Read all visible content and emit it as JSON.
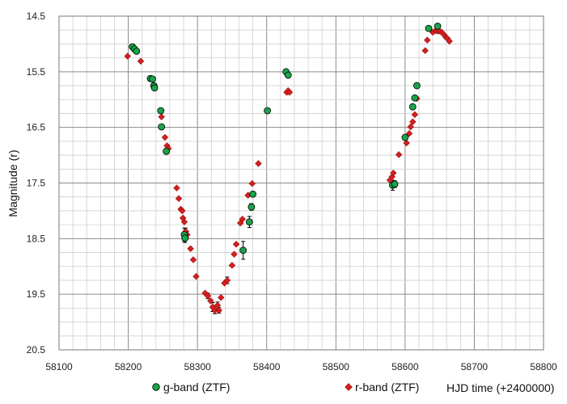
{
  "chart_data": {
    "type": "scatter",
    "title": "",
    "xlabel": "HJD time (+2400000)",
    "ylabel": "Magnitude (r)",
    "xlim": [
      58100,
      58800
    ],
    "ylim": [
      14.5,
      20.5
    ],
    "y_inverted": true,
    "x_ticks": [
      "58100",
      "58200",
      "58300",
      "58400",
      "58500",
      "58600",
      "58700",
      "58800"
    ],
    "y_ticks": [
      "14.5",
      "15.5",
      "16.5",
      "17.5",
      "18.5",
      "19.5",
      "20.5"
    ],
    "grid": true,
    "legend_position": "bottom",
    "series": [
      {
        "name": "g-band (ZTF)",
        "marker": "circle",
        "color": "#1aa34a",
        "points": [
          [
            58206,
            15.05
          ],
          [
            58209,
            15.09
          ],
          [
            58212,
            15.13
          ],
          [
            58232,
            15.62
          ],
          [
            58235,
            15.63
          ],
          [
            58237,
            15.75
          ],
          [
            58238,
            15.79
          ],
          [
            58247,
            16.2
          ],
          [
            58248,
            16.49
          ],
          [
            58255,
            16.93
          ],
          [
            58281,
            18.43
          ],
          [
            58282,
            18.49
          ],
          [
            58366,
            18.71
          ],
          [
            58375,
            18.2
          ],
          [
            58378,
            17.93
          ],
          [
            58380,
            17.7
          ],
          [
            58401,
            16.2
          ],
          [
            58428,
            15.5
          ],
          [
            58431,
            15.56
          ],
          [
            58582,
            17.54
          ],
          [
            58585,
            17.52
          ],
          [
            58600,
            16.68
          ],
          [
            58611,
            16.13
          ],
          [
            58614,
            15.97
          ],
          [
            58617,
            15.75
          ],
          [
            58634,
            14.72
          ],
          [
            58647,
            14.68
          ]
        ],
        "error_bars": [
          [
            58255,
            0.05
          ],
          [
            58281,
            0.12
          ],
          [
            58282,
            0.08
          ],
          [
            58366,
            0.16
          ],
          [
            58375,
            0.1
          ],
          [
            58378,
            0.06
          ],
          [
            58582,
            0.09
          ],
          [
            58585,
            0.06
          ]
        ]
      },
      {
        "name": "r-band (ZTF)",
        "marker": "diamond",
        "color": "#d42020",
        "points": [
          [
            58199,
            15.22
          ],
          [
            58218,
            15.31
          ],
          [
            58248,
            16.31
          ],
          [
            58253,
            16.68
          ],
          [
            58256,
            16.83
          ],
          [
            58258,
            16.88
          ],
          [
            58270,
            17.59
          ],
          [
            58273,
            17.78
          ],
          [
            58276,
            17.97
          ],
          [
            58278,
            18.0
          ],
          [
            58279,
            18.13
          ],
          [
            58281,
            18.2
          ],
          [
            58283,
            18.37
          ],
          [
            58285,
            18.43
          ],
          [
            58290,
            18.68
          ],
          [
            58294,
            18.88
          ],
          [
            58298,
            19.18
          ],
          [
            58311,
            19.48
          ],
          [
            58315,
            19.53
          ],
          [
            58319,
            19.62
          ],
          [
            58322,
            19.73
          ],
          [
            58325,
            19.79
          ],
          [
            58329,
            19.7
          ],
          [
            58331,
            19.79
          ],
          [
            58334,
            19.56
          ],
          [
            58339,
            19.3
          ],
          [
            58343,
            19.25
          ],
          [
            58350,
            18.98
          ],
          [
            58353,
            18.78
          ],
          [
            58356,
            18.6
          ],
          [
            58362,
            18.22
          ],
          [
            58365,
            18.15
          ],
          [
            58373,
            17.72
          ],
          [
            58379,
            17.51
          ],
          [
            58388,
            17.15
          ],
          [
            58429,
            15.87
          ],
          [
            58431,
            15.84
          ],
          [
            58433,
            15.87
          ],
          [
            58578,
            17.45
          ],
          [
            58581,
            17.39
          ],
          [
            58583,
            17.32
          ],
          [
            58591,
            16.99
          ],
          [
            58602,
            16.78
          ],
          [
            58606,
            16.61
          ],
          [
            58608,
            16.49
          ],
          [
            58611,
            16.4
          ],
          [
            58614,
            16.27
          ],
          [
            58617,
            15.98
          ],
          [
            58629,
            15.12
          ],
          [
            58632,
            14.93
          ],
          [
            58640,
            14.79
          ],
          [
            58644,
            14.76
          ],
          [
            58647,
            14.77
          ],
          [
            58650,
            14.77
          ],
          [
            58653,
            14.79
          ],
          [
            58656,
            14.83
          ],
          [
            58659,
            14.88
          ],
          [
            58661,
            14.9
          ],
          [
            58664,
            14.95
          ]
        ],
        "error_bars": [
          [
            58283,
            0.06
          ],
          [
            58285,
            0.06
          ],
          [
            58315,
            0.05
          ],
          [
            58322,
            0.08
          ],
          [
            58325,
            0.06
          ],
          [
            58329,
            0.06
          ],
          [
            58331,
            0.05
          ],
          [
            58343,
            0.06
          ]
        ]
      }
    ]
  }
}
